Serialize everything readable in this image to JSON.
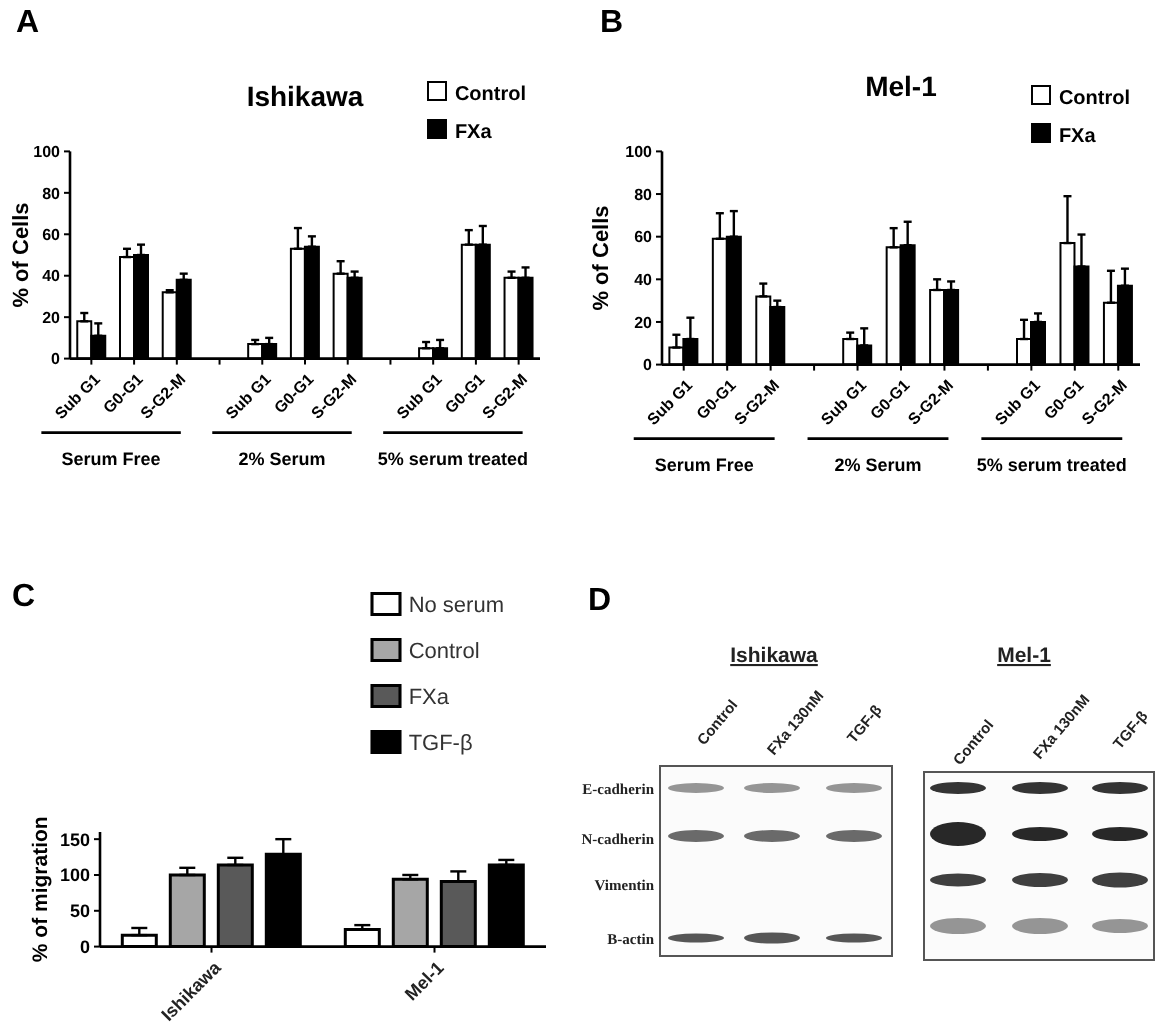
{
  "chart_data": [
    {
      "type": "bar",
      "title": "Ishikawa",
      "ylabel": "% of Cells",
      "annotations": [
        "A",
        "Serum Free",
        "2% Serum",
        "5% serum treated"
      ],
      "categories": [
        "Sub G1",
        "G0-G1",
        "S-G2-M",
        null,
        "Sub G1",
        "G0-G1",
        "S-G2-M",
        null,
        "Sub G1",
        "G0-G1",
        "S-G2-M"
      ],
      "series": [
        {
          "name": "Control",
          "color": "#ffffff",
          "values": [
            18,
            49,
            32,
            null,
            7,
            53,
            41,
            null,
            5,
            55,
            39
          ],
          "errors": [
            [
              18,
              22
            ],
            [
              49,
              53
            ],
            [
              32,
              33
            ],
            null,
            [
              7,
              9
            ],
            [
              53,
              63
            ],
            [
              41,
              47
            ],
            null,
            [
              5,
              8
            ],
            [
              55,
              62
            ],
            [
              39,
              42
            ]
          ]
        },
        {
          "name": "FXa",
          "color": "#000000",
          "values": [
            11,
            50,
            38,
            null,
            7,
            54,
            39,
            null,
            5,
            55,
            39
          ],
          "errors": [
            [
              11,
              17
            ],
            [
              50,
              55
            ],
            [
              38,
              41
            ],
            null,
            [
              7,
              10
            ],
            [
              54,
              59
            ],
            [
              39,
              42
            ],
            null,
            [
              5,
              9
            ],
            [
              55,
              64
            ],
            [
              39,
              44
            ]
          ]
        }
      ],
      "ylim": [
        0,
        100
      ],
      "yticks": [
        0,
        20,
        40,
        60,
        80,
        100
      ],
      "legend": "top right"
    },
    {
      "type": "bar",
      "title": "Mel-1",
      "ylabel": "% of Cells",
      "annotations": [
        "B",
        "Serum Free",
        "2% Serum",
        "5% serum treated"
      ],
      "categories": [
        "Sub G1",
        "G0-G1",
        "S-G2-M",
        null,
        "Sub G1",
        "G0-G1",
        "S-G2-M",
        null,
        "Sub G1",
        "G0-G1",
        "S-G2-M"
      ],
      "series": [
        {
          "name": "Control",
          "color": "#ffffff",
          "values": [
            8,
            59,
            32,
            null,
            12,
            55,
            35,
            null,
            12,
            57,
            29
          ],
          "errors": [
            [
              8,
              14
            ],
            [
              59,
              71
            ],
            [
              32,
              38
            ],
            null,
            [
              12,
              15
            ],
            [
              55,
              64
            ],
            [
              35,
              40
            ],
            null,
            [
              12,
              21
            ],
            [
              57,
              79
            ],
            [
              29,
              44
            ]
          ]
        },
        {
          "name": "FXa",
          "color": "#000000",
          "values": [
            12,
            60,
            27,
            null,
            9,
            56,
            35,
            null,
            20,
            46,
            37
          ],
          "errors": [
            [
              12,
              22
            ],
            [
              60,
              72
            ],
            [
              27,
              30
            ],
            null,
            [
              9,
              17
            ],
            [
              56,
              67
            ],
            [
              35,
              39
            ],
            null,
            [
              20,
              24
            ],
            [
              46,
              61
            ],
            [
              37,
              45
            ]
          ]
        }
      ],
      "ylim": [
        0,
        100
      ],
      "yticks": [
        0,
        20,
        40,
        60,
        80,
        100
      ],
      "legend": "top right"
    },
    {
      "type": "bar",
      "ylabel": "% of migration",
      "annotations": [
        "C"
      ],
      "categories": [
        "Ishikawa",
        "Mel-1"
      ],
      "series": [
        {
          "name": "No serum",
          "color": "#ffffff",
          "values": [
            16,
            24
          ],
          "errors": [
            [
              16,
              26
            ],
            [
              24,
              30
            ]
          ]
        },
        {
          "name": "Control",
          "color": "#a6a6a6",
          "values": [
            100,
            94
          ],
          "errors": [
            [
              100,
              110
            ],
            [
              94,
              100
            ]
          ]
        },
        {
          "name": "FXa",
          "color": "#595959",
          "values": [
            114,
            91
          ],
          "errors": [
            [
              114,
              124
            ],
            [
              91,
              105
            ]
          ]
        },
        {
          "name": "TGF-β",
          "color": "#000000",
          "values": [
            129,
            114
          ],
          "errors": [
            [
              129,
              150
            ],
            [
              114,
              121
            ]
          ]
        }
      ],
      "ylim": [
        0,
        160
      ],
      "yticks": [
        0,
        50,
        100,
        150
      ],
      "legend": "top right"
    },
    {
      "type": "other",
      "annotations": [
        "D",
        "Ishikawa",
        "Mel-1",
        "Control",
        "FXa 130nM",
        "TGF-β",
        "Control",
        "FXa 130nM",
        "TGF-β",
        "E-cadherin",
        "N-cadherin",
        "Vimentin",
        "B-actin"
      ]
    }
  ]
}
